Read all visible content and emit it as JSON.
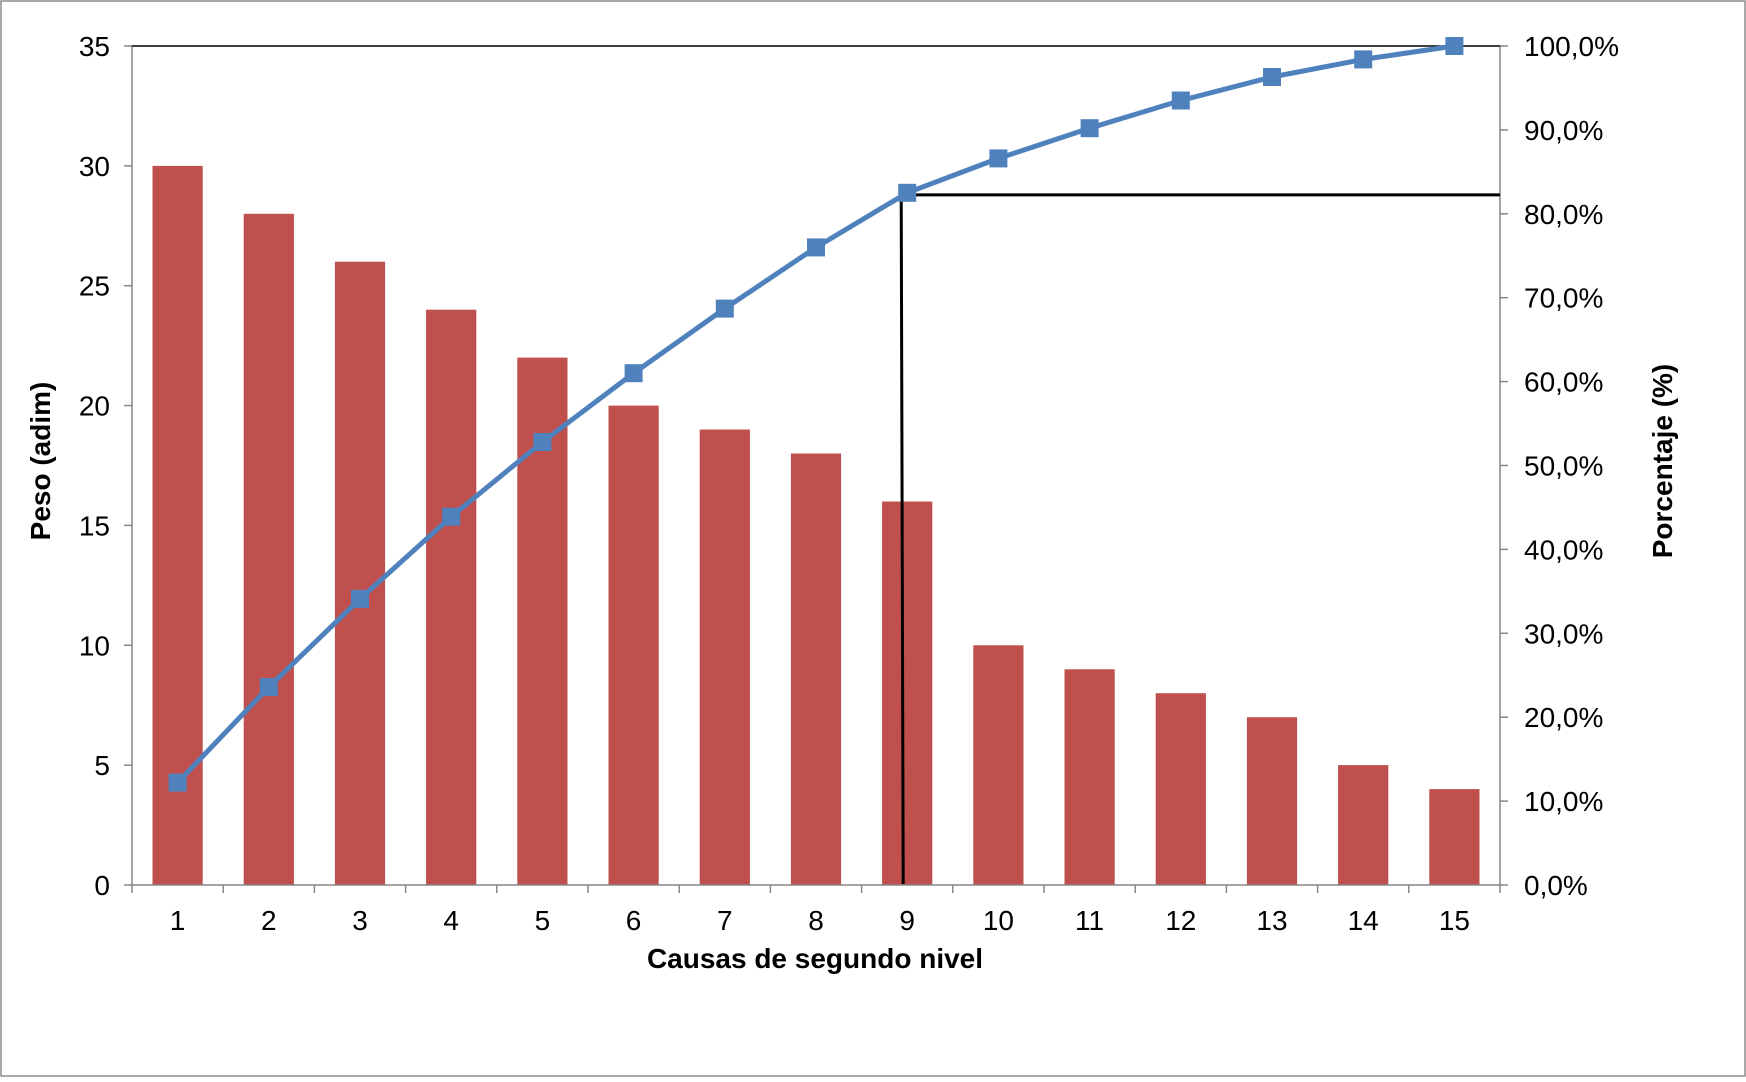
{
  "chart_data": {
    "type": "bar",
    "title": "",
    "xlabel": "Causas de segundo nivel",
    "ylabel": "Peso (adim)",
    "y2label": "Porcentaje (%)",
    "categories": [
      "1",
      "2",
      "3",
      "4",
      "5",
      "6",
      "7",
      "8",
      "9",
      "10",
      "11",
      "12",
      "13",
      "14",
      "15"
    ],
    "ylim": [
      0,
      35
    ],
    "y_ticks": [
      "0",
      "5",
      "10",
      "15",
      "20",
      "25",
      "30",
      "35"
    ],
    "y2lim": [
      0,
      100
    ],
    "y2_ticks": [
      "0,0%",
      "10,0%",
      "20,0%",
      "30,0%",
      "40,0%",
      "50,0%",
      "60,0%",
      "70,0%",
      "80,0%",
      "90,0%",
      "100,0%"
    ],
    "grid": false,
    "legend": "none",
    "series": [
      {
        "type": "bar",
        "axis": "left",
        "color": "#C0504D",
        "values": [
          30,
          28,
          26,
          24,
          22,
          20,
          19,
          18,
          16,
          10,
          9,
          8,
          7,
          5,
          4
        ]
      },
      {
        "type": "line",
        "axis": "right",
        "color": "#4F81BD",
        "marker": "square",
        "values": [
          12.2,
          23.6,
          34.1,
          43.9,
          52.8,
          61.0,
          68.7,
          76.0,
          82.5,
          86.6,
          90.2,
          93.5,
          96.3,
          98.4,
          100.0
        ]
      }
    ],
    "annotations": [
      {
        "type": "reference-lines",
        "color": "#000000",
        "category": "9",
        "y2_value": 82.5
      }
    ]
  }
}
